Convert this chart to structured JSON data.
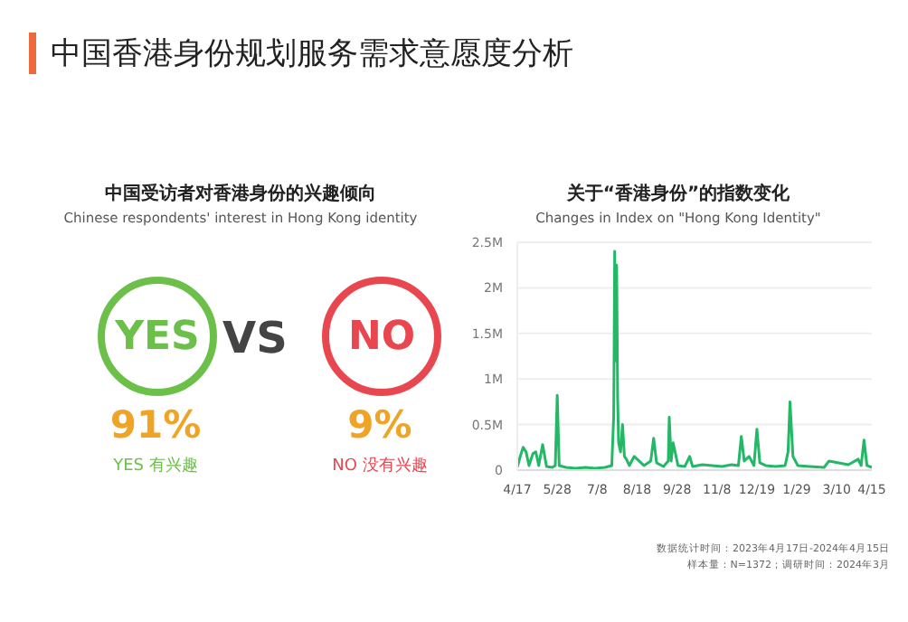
{
  "chart_data": [
    {
      "type": "other",
      "title": "中国香港身份规划服务需求意愿度分析",
      "subtitle": "中国受访者对香港身份的兴趣倾向",
      "categories": [
        "YES",
        "NO"
      ],
      "value_labels": [
        "91%",
        "9%"
      ],
      "colors": [
        "#6cc04a",
        "#e9474f"
      ],
      "annotations": [
        "Chinese respondents' interest in Hong Kong identity",
        "VS",
        "YES 有兴趣",
        "NO 没有兴趣"
      ]
    },
    {
      "type": "line",
      "title": "关于“香港身份”的指数变化",
      "subtitle": "Changes in Index on \"Hong Kong Identity\"",
      "grid": "y",
      "marker": "none",
      "line_style": "solid",
      "ylim": [
        0,
        2.5
      ],
      "yticks": [
        0,
        {
          "value": 0.5,
          "label": "0.5M"
        },
        {
          "value": 1,
          "label": "1M"
        },
        {
          "value": 1.5,
          "label": "1.5M"
        },
        {
          "value": 2,
          "label": "2M"
        },
        {
          "value": 2.5,
          "label": "2.5M"
        }
      ],
      "xlim": [
        "2023-04-17",
        "2024-04-15"
      ],
      "xticks": [
        {
          "value": "2023-04-17",
          "label": "4/17"
        },
        {
          "value": "2023-05-28",
          "label": "5/28"
        },
        {
          "value": "2023-07-08",
          "label": "7/8"
        },
        {
          "value": "2023-08-18",
          "label": "8/18"
        },
        {
          "value": "2023-09-28",
          "label": "9/28"
        },
        {
          "value": "2023-11-08",
          "label": "11/8"
        },
        {
          "value": "2023-12-19",
          "label": "12/19"
        },
        {
          "value": "2024-01-29",
          "label": "1/29"
        },
        {
          "value": "2024-03-10",
          "label": "3/10"
        },
        {
          "value": "2024-04-15",
          "label": "4/15"
        }
      ],
      "x": [
        "2023-04-17",
        "2023-04-20",
        "2023-04-23",
        "2023-04-26",
        "2023-04-29",
        "2023-05-03",
        "2023-05-06",
        "2023-05-09",
        "2023-05-13",
        "2023-05-17",
        "2023-05-23",
        "2023-05-26",
        "2023-05-28",
        "2023-05-30",
        "2023-06-06",
        "2023-06-16",
        "2023-06-26",
        "2023-07-06",
        "2023-07-16",
        "2023-07-23",
        "2023-07-25",
        "2023-07-26",
        "2023-07-27",
        "2023-07-28",
        "2023-07-29",
        "2023-07-30",
        "2023-08-01",
        "2023-08-03",
        "2023-08-05",
        "2023-08-07",
        "2023-08-10",
        "2023-08-15",
        "2023-08-20",
        "2023-08-25",
        "2023-09-01",
        "2023-09-04",
        "2023-09-07",
        "2023-09-14",
        "2023-09-19",
        "2023-09-20",
        "2023-09-22",
        "2023-09-24",
        "2023-09-29",
        "2023-10-06",
        "2023-10-11",
        "2023-10-14",
        "2023-10-24",
        "2023-11-03",
        "2023-11-13",
        "2023-11-23",
        "2023-11-30",
        "2023-12-03",
        "2023-12-06",
        "2023-12-11",
        "2023-12-16",
        "2023-12-19",
        "2023-12-22",
        "2023-12-28",
        "2024-01-07",
        "2024-01-17",
        "2024-01-20",
        "2024-01-22",
        "2024-01-25",
        "2024-01-30",
        "2024-02-11",
        "2024-02-26",
        "2024-03-02",
        "2024-03-12",
        "2024-03-22",
        "2024-04-01",
        "2024-04-04",
        "2024-04-07",
        "2024-04-10",
        "2024-04-15"
      ],
      "series": [
        {
          "color": "#22b866",
          "values": [
            0.03,
            0.15,
            0.25,
            0.2,
            0.05,
            0.18,
            0.2,
            0.05,
            0.28,
            0.04,
            0.03,
            0.05,
            0.82,
            0.05,
            0.03,
            0.02,
            0.03,
            0.02,
            0.03,
            0.05,
            0.6,
            2.4,
            1.2,
            2.25,
            0.8,
            0.3,
            0.2,
            0.5,
            0.15,
            0.12,
            0.05,
            0.15,
            0.1,
            0.05,
            0.1,
            0.35,
            0.08,
            0.04,
            0.1,
            0.58,
            0.1,
            0.3,
            0.05,
            0.04,
            0.15,
            0.04,
            0.06,
            0.05,
            0.04,
            0.06,
            0.05,
            0.37,
            0.1,
            0.15,
            0.05,
            0.45,
            0.08,
            0.05,
            0.04,
            0.05,
            0.2,
            0.75,
            0.15,
            0.05,
            0.04,
            0.03,
            0.1,
            0.08,
            0.06,
            0.12,
            0.05,
            0.33,
            0.05,
            0.03
          ]
        }
      ],
      "annotations": [
        "数据统计时间：2023年4月17日-2024年4月15日",
        "样本量：N=1372；调研时间：2024年3月"
      ]
    }
  ]
}
